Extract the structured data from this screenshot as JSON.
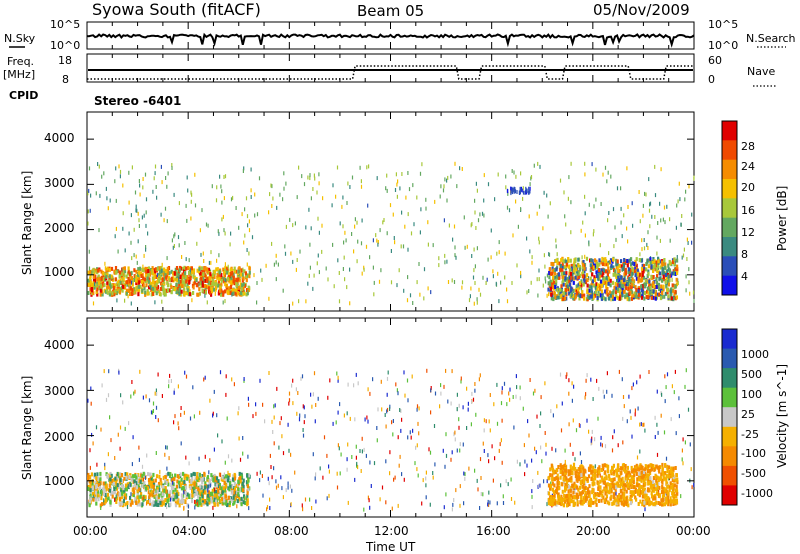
{
  "header": {
    "station": "Syowa South (fitACF)",
    "beam": "Beam 05",
    "date": "05/Nov/2009"
  },
  "top_panel": {
    "nsky_label": "N.Sky",
    "nsearch_label": "N.Search",
    "noise_ticks": [
      "10^5",
      "10^0"
    ],
    "freq_label_1": "Freq.",
    "freq_label_2": "[MHz]",
    "freq_ticks": [
      "18",
      "8"
    ],
    "nave_label": "Nave",
    "nave_ticks": [
      "60",
      "0"
    ],
    "cpid_label": "CPID",
    "mode_label": "Stereo -6401"
  },
  "time_axis": {
    "label": "Time UT",
    "ticks": [
      "00:00",
      "04:00",
      "08:00",
      "12:00",
      "16:00",
      "20:00",
      "00:00"
    ]
  },
  "power_colorbar": {
    "label": "Power [dB]",
    "ticks": [
      "28",
      "24",
      "20",
      "16",
      "12",
      "8",
      "4"
    ],
    "colors": [
      "#e00000",
      "#f04a00",
      "#f58c00",
      "#f5c000",
      "#a8c83a",
      "#63a860",
      "#3a8a80",
      "#2a4eb8",
      "#1010e8"
    ]
  },
  "velocity_colorbar": {
    "label": "Velocity [m s^-1]",
    "ticks": [
      "1000",
      "500",
      "100",
      "25",
      "-25",
      "-100",
      "-500",
      "-1000"
    ],
    "colors": [
      "#1a2bd0",
      "#2a5ab0",
      "#2f8c6c",
      "#5cc03a",
      "#c8c8c8",
      "#f5b000",
      "#f58a00",
      "#f05000",
      "#e00000"
    ]
  },
  "chart_data": [
    {
      "type": "heatmap",
      "name": "Power",
      "ylabel": "Slant Range [km]",
      "xlabel": "",
      "xlim_hours": [
        0,
        24
      ],
      "ylim_km": [
        200,
        4600
      ],
      "yticks": [
        "1000",
        "2000",
        "3000",
        "4000"
      ],
      "value_units": "dB",
      "regions": [
        {
          "t": [
            0.0,
            6.4
          ],
          "r": [
            600,
            1200
          ],
          "values": [
            12,
            28
          ],
          "density": "dense"
        },
        {
          "t": [
            0.0,
            24.0
          ],
          "r": [
            400,
            3500
          ],
          "values": [
            8,
            20
          ],
          "density": "sparse"
        },
        {
          "t": [
            18.2,
            23.3
          ],
          "r": [
            500,
            1400
          ],
          "values": [
            4,
            28
          ],
          "density": "dense"
        },
        {
          "t": [
            16.5,
            17.5
          ],
          "r": [
            2850,
            2950
          ],
          "values": [
            4,
            8
          ],
          "density": "medium"
        }
      ]
    },
    {
      "type": "heatmap",
      "name": "Velocity",
      "ylabel": "Slant Range [km]",
      "xlabel": "Time UT",
      "xlim_hours": [
        0,
        24
      ],
      "ylim_km": [
        200,
        4600
      ],
      "yticks": [
        "1000",
        "2000",
        "3000",
        "4000"
      ],
      "value_units": "m s^-1",
      "regions": [
        {
          "t": [
            0.0,
            6.4
          ],
          "r": [
            500,
            1200
          ],
          "values": [
            -500,
            500
          ],
          "density": "dense"
        },
        {
          "t": [
            0.0,
            24.0
          ],
          "r": [
            400,
            3500
          ],
          "values": [
            -1000,
            1000
          ],
          "density": "sparse"
        },
        {
          "t": [
            18.2,
            23.3
          ],
          "r": [
            500,
            1400
          ],
          "values": [
            -500,
            -100
          ],
          "density": "dense"
        }
      ]
    }
  ]
}
